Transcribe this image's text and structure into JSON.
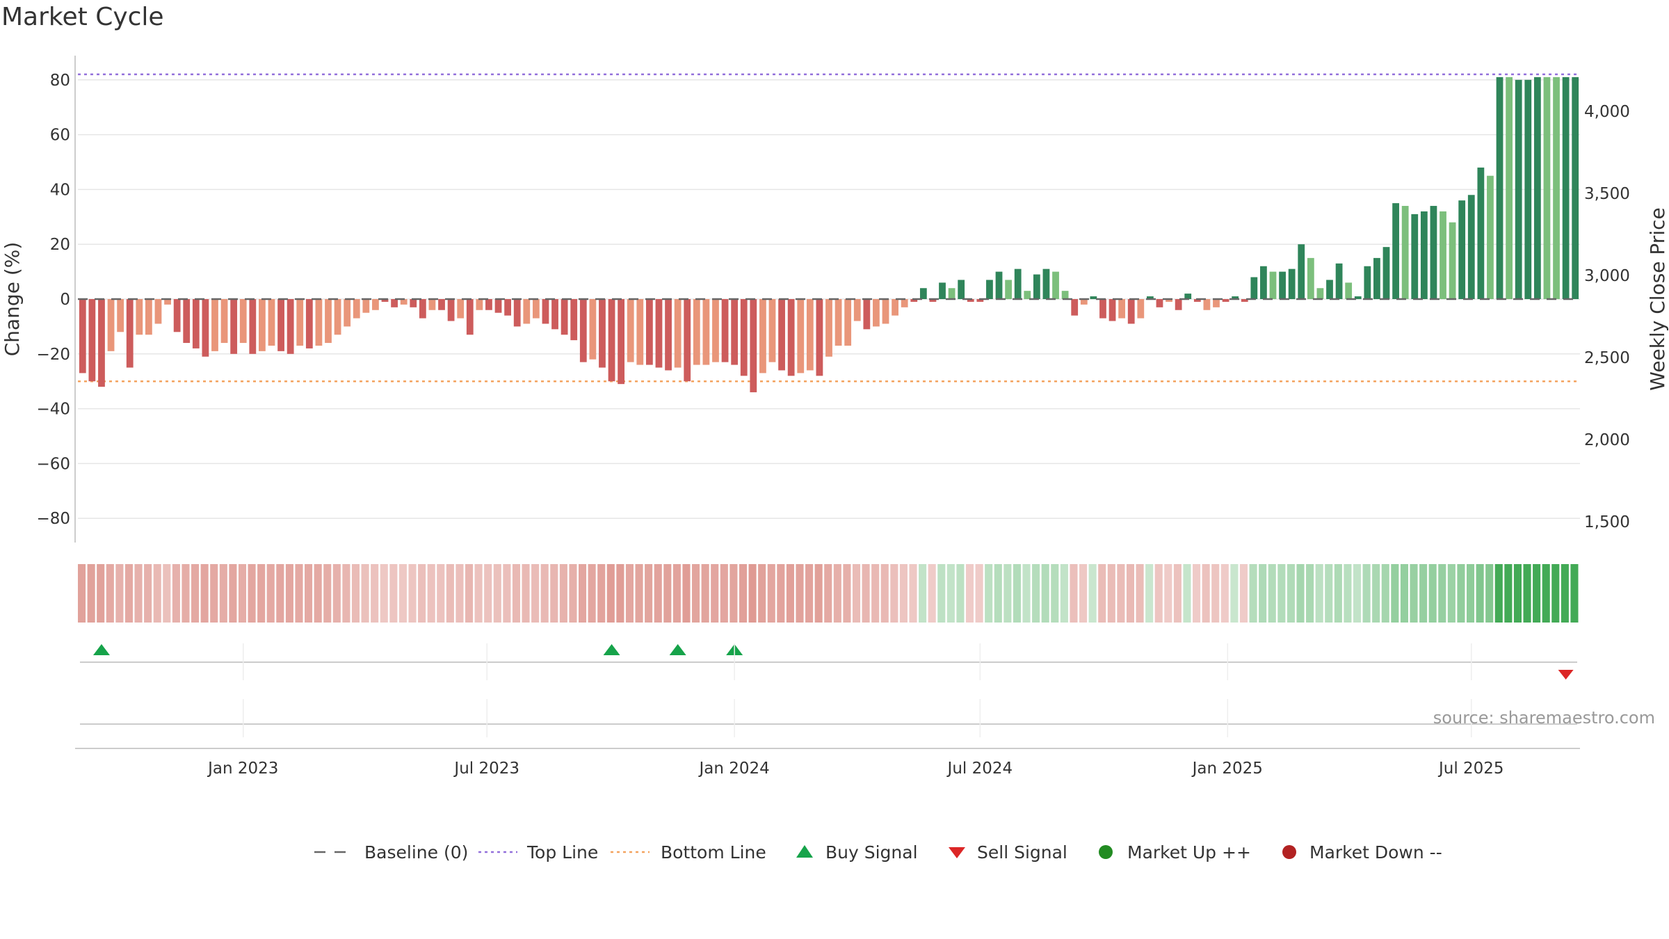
{
  "title": "Market Cycle",
  "source": "source: sharemaestro.com",
  "colors": {
    "up_strong": "#2f855a",
    "up_light": "#7cbf7c",
    "down_strong": "#cd5c5c",
    "down_light": "#e9967a",
    "top_line": "#9370db",
    "bottom_line": "#f4a460",
    "baseline": "#666666",
    "buy": "#16a34a",
    "sell": "#dc2626",
    "market_up": "#228b22",
    "market_down": "#b22222"
  },
  "legend": [
    {
      "key": "baseline",
      "label": "Baseline (0)",
      "symbol": "dash"
    },
    {
      "key": "top",
      "label": "Top Line",
      "symbol": "dot"
    },
    {
      "key": "bottom",
      "label": "Bottom Line",
      "symbol": "dot"
    },
    {
      "key": "buy",
      "label": "Buy Signal",
      "symbol": "triangle-up"
    },
    {
      "key": "sell",
      "label": "Sell Signal",
      "symbol": "triangle-down"
    },
    {
      "key": "up",
      "label": "Market Up ++",
      "symbol": "circle"
    },
    {
      "key": "down",
      "label": "Market Down --",
      "symbol": "circle"
    }
  ],
  "chart_data": {
    "type": "bar",
    "x_tick_labels": [
      "Jan 2023",
      "Jul 2023",
      "Jan 2024",
      "Jul 2024",
      "Jan 2025",
      "Jul 2025"
    ],
    "ylabel": "Change (%)",
    "y2label": "Weekly Close Price",
    "ylim": [
      -90,
      90
    ],
    "y_ticks": [
      80,
      60,
      40,
      20,
      0,
      -20,
      -40,
      -60,
      -80
    ],
    "y_tick_labels": [
      "80",
      "60",
      "40",
      "20",
      "0",
      "−20",
      "−40",
      "−60",
      "−80"
    ],
    "y2lim": [
      1250,
      4350
    ],
    "y2_ticks": [
      4000,
      3500,
      3000,
      2500,
      2000,
      1500
    ],
    "y2_tick_labels": [
      "4,000",
      "3,500",
      "3,000",
      "2,500",
      "2,000",
      "1,500"
    ],
    "top_line": 82,
    "bottom_line": -30,
    "baseline": 0,
    "grid": true,
    "legend_position": "bottom-center",
    "values": [
      -27,
      -30,
      -32,
      -19,
      -12,
      -25,
      -13,
      -13,
      -9,
      -2,
      -12,
      -16,
      -18,
      -21,
      -19,
      -16,
      -20,
      -16,
      -20,
      -19,
      -17,
      -19,
      -20,
      -17,
      -18,
      -17,
      -16,
      -13,
      -10,
      -7,
      -5,
      -4,
      -1,
      -3,
      -2,
      -3,
      -7,
      -4,
      -4,
      -8,
      -7,
      -13,
      -4,
      -4,
      -5,
      -6,
      -10,
      -9,
      -7,
      -9,
      -11,
      -13,
      -15,
      -23,
      -22,
      -25,
      -30,
      -31,
      -23,
      -24,
      -24,
      -25,
      -26,
      -25,
      -30,
      -24,
      -24,
      -23,
      -23,
      -24,
      -28,
      -34,
      -27,
      -23,
      -26,
      -28,
      -27,
      -26,
      -28,
      -21,
      -17,
      -17,
      -8,
      -11,
      -10,
      -9,
      -6,
      -3,
      -1,
      4,
      -1,
      6,
      4,
      7,
      -1,
      -1,
      7,
      10,
      7,
      11,
      3,
      9,
      11,
      10,
      3,
      -6,
      -2,
      1,
      -7,
      -8,
      -7,
      -9,
      -7,
      1,
      -3,
      -1,
      -4,
      2,
      -1,
      -4,
      -3,
      -1,
      1,
      -1,
      8,
      12,
      10,
      10,
      11,
      20,
      15,
      4,
      7,
      13,
      6,
      1,
      12,
      15,
      19,
      35,
      34,
      31,
      32,
      34,
      32,
      28,
      36,
      38,
      48,
      45,
      81,
      81,
      80,
      80,
      81,
      81,
      81,
      81,
      81
    ],
    "strength": [
      2,
      2,
      2,
      1,
      1,
      2,
      1,
      1,
      1,
      1,
      2,
      2,
      2,
      2,
      1,
      1,
      2,
      1,
      2,
      1,
      1,
      2,
      2,
      1,
      2,
      1,
      1,
      1,
      1,
      1,
      1,
      1,
      2,
      2,
      1,
      2,
      2,
      1,
      2,
      2,
      1,
      2,
      1,
      2,
      2,
      2,
      2,
      1,
      1,
      2,
      2,
      2,
      2,
      2,
      1,
      2,
      2,
      2,
      1,
      1,
      2,
      2,
      2,
      1,
      2,
      1,
      1,
      1,
      2,
      2,
      2,
      2,
      1,
      1,
      2,
      2,
      1,
      1,
      2,
      1,
      1,
      1,
      1,
      2,
      1,
      1,
      1,
      1,
      2,
      2,
      2,
      2,
      1,
      2,
      2,
      2,
      2,
      2,
      1,
      2,
      1,
      2,
      2,
      1,
      1,
      2,
      1,
      2,
      2,
      2,
      1,
      2,
      1,
      2,
      2,
      1,
      2,
      2,
      2,
      1,
      1,
      2,
      2,
      2,
      2,
      2,
      1,
      2,
      2,
      2,
      1,
      1,
      2,
      2,
      1,
      2,
      2,
      2,
      2,
      2,
      1,
      2,
      2,
      2,
      1,
      1,
      2,
      2,
      2,
      1,
      2,
      1,
      2,
      2,
      2,
      1,
      1,
      2,
      2
    ],
    "heat_intensity": [
      0.45,
      0.45,
      0.45,
      0.4,
      0.35,
      0.4,
      0.35,
      0.35,
      0.3,
      0.25,
      0.35,
      0.38,
      0.4,
      0.42,
      0.4,
      0.38,
      0.42,
      0.38,
      0.42,
      0.42,
      0.4,
      0.42,
      0.42,
      0.4,
      0.4,
      0.4,
      0.38,
      0.35,
      0.32,
      0.28,
      0.25,
      0.24,
      0.2,
      0.22,
      0.2,
      0.22,
      0.26,
      0.24,
      0.24,
      0.28,
      0.26,
      0.32,
      0.24,
      0.24,
      0.25,
      0.26,
      0.3,
      0.3,
      0.28,
      0.3,
      0.32,
      0.34,
      0.36,
      0.42,
      0.42,
      0.44,
      0.48,
      0.48,
      0.42,
      0.43,
      0.43,
      0.44,
      0.45,
      0.44,
      0.48,
      0.43,
      0.43,
      0.42,
      0.42,
      0.43,
      0.46,
      0.5,
      0.45,
      0.42,
      0.44,
      0.46,
      0.45,
      0.44,
      0.46,
      0.4,
      0.36,
      0.36,
      0.28,
      0.32,
      0.3,
      0.3,
      0.26,
      0.22,
      0.2,
      0.22,
      0.18,
      0.25,
      0.22,
      0.26,
      0.18,
      0.18,
      0.26,
      0.3,
      0.26,
      0.32,
      0.22,
      0.3,
      0.32,
      0.3,
      0.22,
      0.26,
      0.2,
      0.18,
      0.28,
      0.28,
      0.28,
      0.3,
      0.28,
      0.18,
      0.22,
      0.18,
      0.24,
      0.2,
      0.18,
      0.24,
      0.22,
      0.18,
      0.18,
      0.18,
      0.3,
      0.34,
      0.32,
      0.32,
      0.33,
      0.4,
      0.37,
      0.26,
      0.3,
      0.35,
      0.28,
      0.22,
      0.34,
      0.37,
      0.4,
      0.5,
      0.5,
      0.48,
      0.49,
      0.5,
      0.49,
      0.46,
      0.52,
      0.54,
      0.62,
      0.6,
      1,
      1,
      1,
      1,
      1,
      1,
      1,
      1,
      1
    ],
    "buy_signals": [
      2,
      56,
      63,
      69
    ],
    "sell_signals": [
      157
    ]
  }
}
